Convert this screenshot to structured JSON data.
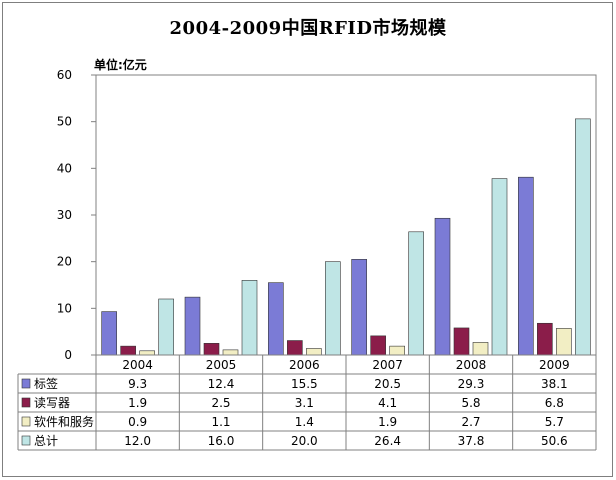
{
  "chart_data": {
    "type": "bar",
    "title": "2004-2009中国RFID市场规模",
    "unit_label": "单位:亿元",
    "categories": [
      "2004",
      "2005",
      "2006",
      "2007",
      "2008",
      "2009"
    ],
    "ylim": [
      0,
      60
    ],
    "yticks": [
      "0",
      "10",
      "20",
      "30",
      "40",
      "50",
      "60"
    ],
    "grid": false,
    "legend": "data-table-left",
    "series": [
      {
        "name": "标签",
        "color": "#7b7bd6",
        "values": [
          9.3,
          12.4,
          15.5,
          20.5,
          29.3,
          38.1
        ],
        "labels": [
          "9.3",
          "12.4",
          "15.5",
          "20.5",
          "29.3",
          "38.1"
        ]
      },
      {
        "name": "读写器",
        "color": "#8b1d4a",
        "values": [
          1.9,
          2.5,
          3.1,
          4.1,
          5.8,
          6.8
        ],
        "labels": [
          "1.9",
          "2.5",
          "3.1",
          "4.1",
          "5.8",
          "6.8"
        ]
      },
      {
        "name": "软件和服务",
        "color": "#f2eec4",
        "values": [
          0.9,
          1.1,
          1.4,
          1.9,
          2.7,
          5.7
        ],
        "labels": [
          "0.9",
          "1.1",
          "1.4",
          "1.9",
          "2.7",
          "5.7"
        ]
      },
      {
        "name": "总计",
        "color": "#bfe5e5",
        "values": [
          12.0,
          16.0,
          20.0,
          26.4,
          37.8,
          50.6
        ],
        "labels": [
          "12.0",
          "16.0",
          "20.0",
          "26.4",
          "37.8",
          "50.6"
        ]
      }
    ]
  }
}
